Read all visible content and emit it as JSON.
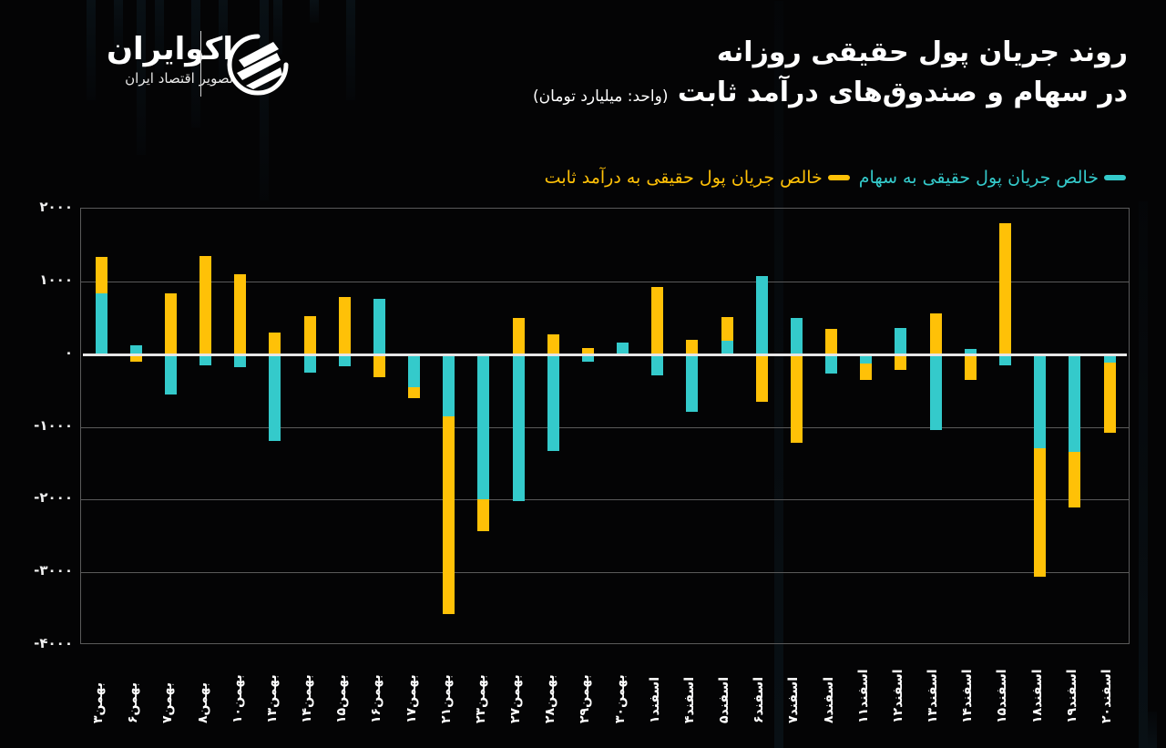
{
  "brand": {
    "name": "اکوایران",
    "tagline": "تصویر اقتصاد ایران"
  },
  "title": {
    "line1": "روند جریان پول حقیقی روزانه",
    "line2": "در سهام و صندوق‌های درآمد ثابت",
    "unit": "(واحد: میلیارد تومان)"
  },
  "legend": {
    "stocks": "خالص جریان پول حقیقی به سهام",
    "fixed_income": "خالص جریان پول حقیقی به درآمد ثابت"
  },
  "colors": {
    "stocks": "#34CACB",
    "fixed_income": "#FFC107",
    "background": "#040405",
    "grid": "#5a5a5a"
  },
  "yaxis": {
    "ticks": [
      "۲۰۰۰",
      "۱۰۰۰",
      "۰",
      "-۱۰۰۰",
      "-۲۰۰۰",
      "-۳۰۰۰",
      "-۴۰۰۰"
    ]
  },
  "chart_data": {
    "type": "bar",
    "stacked": true,
    "title": "روند جریان پول حقیقی روزانه در سهام و صندوق‌های درآمد ثابت",
    "subtitle": "(واحد: میلیارد تومان)",
    "xlabel": "",
    "ylabel": "",
    "ylim": [
      -4000,
      2000
    ],
    "yticks": [
      2000,
      1000,
      0,
      -1000,
      -2000,
      -3000,
      -4000
    ],
    "grid": true,
    "legend_position": "top-right",
    "categories": [
      "بهمن۳",
      "بهمن۶",
      "بهمن۷",
      "بهمن۸",
      "بهمن۱۰",
      "بهمن۱۳",
      "بهمن۱۴",
      "بهمن۱۵",
      "بهمن۱۶",
      "بهمن۱۷",
      "بهمن۲۱",
      "بهمن۲۳",
      "بهمن۲۷",
      "بهمن۲۸",
      "بهمن۲۹",
      "بهمن۳۰",
      "اسفند۱",
      "اسفند۴",
      "اسفند۵",
      "اسفند۶",
      "اسفند۷",
      "اسفند۸",
      "اسفند۱۱",
      "اسفند۱۲",
      "اسفند۱۳",
      "اسفند۱۴",
      "اسفند۱۵",
      "اسفند۱۸",
      "اسفند۱۹",
      "اسفند۲۰"
    ],
    "series": [
      {
        "name": "خالص جریان پول حقیقی به سهام",
        "color": "#34CACB",
        "values": [
          830,
          120,
          -560,
          -150,
          -180,
          -1200,
          -260,
          -170,
          760,
          -450,
          -860,
          -2000,
          -2020,
          -1330,
          -110,
          160,
          -290,
          -790,
          180,
          1070,
          500,
          -270,
          -130,
          360,
          -1040,
          70,
          -150,
          -1290,
          -1350,
          -120
        ]
      },
      {
        "name": "خالص جریان پول حقیقی به درآمد ثابت",
        "color": "#FFC107",
        "values": [
          500,
          -110,
          840,
          1350,
          1100,
          300,
          520,
          780,
          -320,
          -160,
          -2720,
          -440,
          500,
          270,
          80,
          -20,
          920,
          200,
          330,
          -660,
          -1220,
          350,
          -220,
          -220,
          560,
          -350,
          1800,
          -1770,
          -760,
          -960
        ]
      }
    ]
  }
}
